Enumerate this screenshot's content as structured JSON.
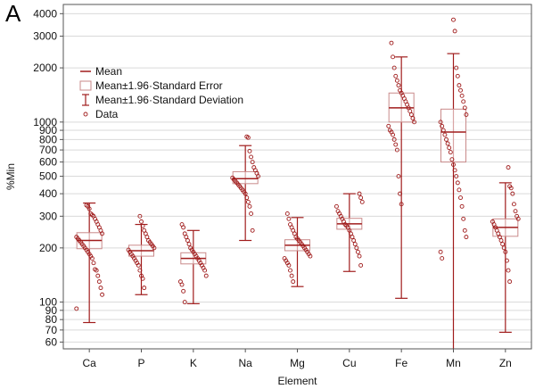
{
  "panel_label": "A",
  "colors": {
    "mark": "#a01c1c",
    "box_edge": "#c98a8a",
    "grid": "#d9d9d9",
    "frame": "#555555"
  },
  "chart_data": {
    "type": "box",
    "xlabel": "Element",
    "ylabel": "%Min",
    "yscale": "log",
    "ylim": [
      55,
      4500
    ],
    "yticks": [
      60,
      70,
      80,
      90,
      100,
      200,
      300,
      400,
      500,
      600,
      700,
      800,
      900,
      1000,
      2000,
      3000,
      4000
    ],
    "grid": true,
    "legend_position": "top-left",
    "legend": [
      "Mean",
      "Mean±1.96·Standard Error",
      "Mean±1.96·Standard Deviation",
      "Data"
    ],
    "categories": [
      "Ca",
      "P",
      "K",
      "Na",
      "Mg",
      "Cu",
      "Fe",
      "Mn",
      "Zn"
    ],
    "groups": [
      {
        "mean": 220,
        "se_low": 198,
        "se_high": 243,
        "sd_low": 77,
        "sd_high": 355,
        "data": [
          92,
          110,
          120,
          130,
          140,
          150,
          152,
          165,
          175,
          180,
          185,
          190,
          195,
          200,
          205,
          210,
          215,
          220,
          225,
          230,
          240,
          250,
          260,
          270,
          280,
          290,
          300,
          305,
          310,
          330,
          340,
          345
        ]
      },
      {
        "mean": 193,
        "se_low": 180,
        "se_high": 207,
        "sd_low": 110,
        "sd_high": 270,
        "data": [
          120,
          135,
          140,
          150,
          160,
          165,
          170,
          175,
          180,
          185,
          190,
          195,
          200,
          205,
          210,
          215,
          220,
          230,
          240,
          250,
          265,
          280,
          300
        ]
      },
      {
        "mean": 175,
        "se_low": 163,
        "se_high": 188,
        "sd_low": 98,
        "sd_high": 250,
        "data": [
          100,
          115,
          125,
          130,
          140,
          150,
          155,
          160,
          165,
          170,
          175,
          180,
          185,
          190,
          195,
          200,
          210,
          220,
          230,
          240,
          260,
          270
        ]
      },
      {
        "mean": 485,
        "se_low": 455,
        "se_high": 530,
        "sd_low": 220,
        "sd_high": 740,
        "data": [
          250,
          310,
          340,
          360,
          380,
          400,
          410,
          420,
          430,
          440,
          450,
          460,
          470,
          480,
          490,
          500,
          520,
          540,
          560,
          600,
          640,
          690,
          820,
          830
        ]
      },
      {
        "mean": 207,
        "se_low": 193,
        "se_high": 222,
        "sd_low": 122,
        "sd_high": 295,
        "data": [
          130,
          140,
          150,
          160,
          165,
          170,
          175,
          180,
          185,
          190,
          195,
          200,
          205,
          210,
          215,
          220,
          225,
          230,
          240,
          250,
          260,
          270,
          290,
          310
        ]
      },
      {
        "mean": 272,
        "se_low": 254,
        "se_high": 292,
        "sd_low": 148,
        "sd_high": 400,
        "data": [
          160,
          180,
          190,
          200,
          210,
          220,
          230,
          240,
          250,
          260,
          265,
          270,
          280,
          290,
          300,
          310,
          320,
          340,
          360,
          380,
          400
        ]
      },
      {
        "mean": 1200,
        "se_low": 1000,
        "se_high": 1450,
        "sd_low": 105,
        "sd_high": 2300,
        "data": [
          350,
          400,
          500,
          700,
          750,
          800,
          850,
          880,
          900,
          950,
          1000,
          1050,
          1100,
          1150,
          1200,
          1250,
          1300,
          1350,
          1400,
          1450,
          1500,
          1600,
          1700,
          1800,
          2000,
          2300,
          2750
        ]
      },
      {
        "mean": 880,
        "se_low": 600,
        "se_high": 1180,
        "sd_low": 52,
        "sd_high": 2400,
        "data": [
          175,
          190,
          230,
          250,
          290,
          340,
          380,
          420,
          460,
          500,
          540,
          580,
          620,
          680,
          720,
          760,
          800,
          850,
          900,
          950,
          1000,
          1100,
          1200,
          1300,
          1400,
          1500,
          1600,
          1800,
          2000,
          3200,
          3700
        ]
      },
      {
        "mean": 260,
        "se_low": 232,
        "se_high": 290,
        "sd_low": 68,
        "sd_high": 460,
        "data": [
          130,
          150,
          170,
          190,
          200,
          210,
          220,
          230,
          240,
          250,
          260,
          270,
          280,
          290,
          300,
          320,
          350,
          400,
          430,
          440,
          560
        ]
      }
    ]
  }
}
